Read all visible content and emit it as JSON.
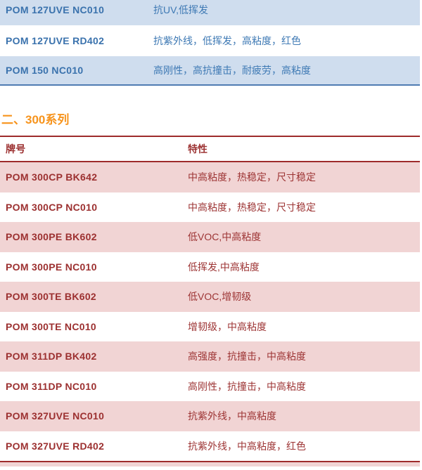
{
  "colors": {
    "blue_row_bg": "#cfddee",
    "blue_text": "#3e79b4",
    "blue_border": "#4f7cb2",
    "pink_row_bg": "#f1d4d4",
    "red_text": "#9d3434",
    "red_border": "#9e2b2b",
    "heading_orange": "#f7941d"
  },
  "table1": {
    "rows": [
      {
        "grade": "POM 127UVE NC010",
        "features": "抗UV,低挥发"
      },
      {
        "grade": "POM 127UVE RD402",
        "features": "抗紫外线，低挥发，高粘度，红色"
      },
      {
        "grade": "POM 150 NC010",
        "features": "高刚性，高抗撞击，耐疲劳，高粘度"
      }
    ]
  },
  "section": {
    "heading": "二、300系列"
  },
  "table2": {
    "header": {
      "grade": "牌号",
      "features": "特性"
    },
    "rows": [
      {
        "grade": "POM 300CP BK642",
        "features": "中高粘度，热稳定，尺寸稳定"
      },
      {
        "grade": "POM 300CP NC010",
        "features": "中高粘度，热稳定，尺寸稳定"
      },
      {
        "grade": "POM 300PE BK602",
        "features": "低VOC,中高粘度"
      },
      {
        "grade": "POM 300PE NC010",
        "features": "低挥发,中高粘度"
      },
      {
        "grade": "POM 300TE BK602",
        "features": "低VOC,增韧级"
      },
      {
        "grade": "POM 300TE NC010",
        "features": "增韧级，中高粘度"
      },
      {
        "grade": "POM 311DP BK402",
        "features": "高强度，抗撞击，中高粘度"
      },
      {
        "grade": "POM 311DP NC010",
        "features": "高刚性，抗撞击，中高粘度"
      },
      {
        "grade": "POM 327UVE NC010",
        "features": "抗紫外线，中高粘度"
      },
      {
        "grade": "POM 327UVE RD402",
        "features": "抗紫外线，中高粘度，红色"
      }
    ]
  }
}
